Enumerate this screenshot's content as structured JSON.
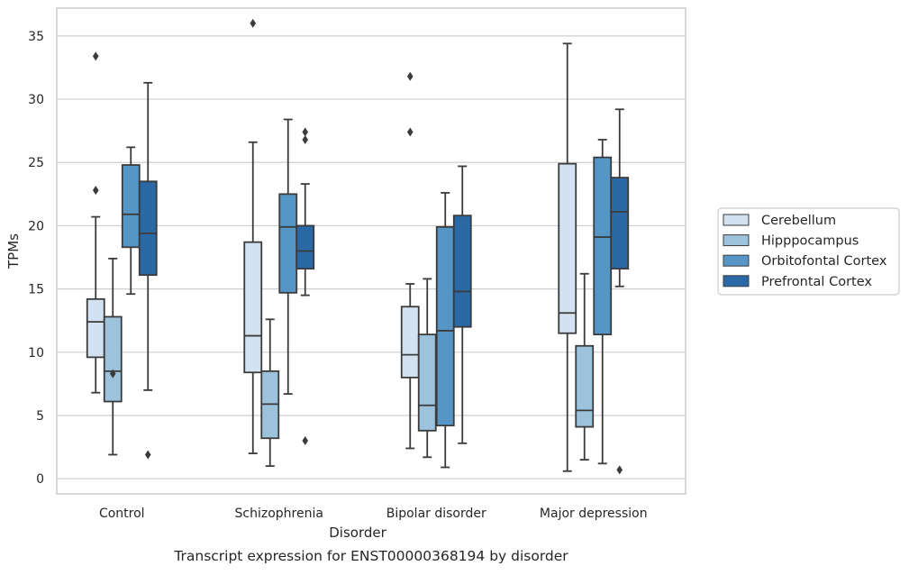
{
  "caption": "Transcript expression for ENST00000368194 by disorder",
  "chart_data": {
    "type": "boxplot",
    "xlabel": "Disorder",
    "ylabel": "TPMs",
    "ylim": [
      -1.2,
      37.2
    ],
    "yticks": [
      0,
      5,
      10,
      15,
      20,
      25,
      30,
      35
    ],
    "grid": "horizontal",
    "legend_placement": "right",
    "categories": [
      "Control",
      "Schizophrenia",
      "Bipolar disorder",
      "Major depression"
    ],
    "series": [
      {
        "name": "Cerebellum",
        "color": "#d3e2f1",
        "boxes": [
          {
            "whisker_low": 6.8,
            "q1": 9.6,
            "median": 12.4,
            "q3": 14.2,
            "whisker_high": 20.7,
            "outliers": [
              22.8,
              33.4
            ]
          },
          {
            "whisker_low": 2.0,
            "q1": 8.4,
            "median": 11.3,
            "q3": 18.7,
            "whisker_high": 26.6,
            "outliers": [
              36.0
            ]
          },
          {
            "whisker_low": 2.4,
            "q1": 8.0,
            "median": 9.8,
            "q3": 13.6,
            "whisker_high": 15.4,
            "outliers": [
              27.4,
              31.8
            ]
          },
          {
            "whisker_low": 0.6,
            "q1": 11.5,
            "median": 13.1,
            "q3": 24.9,
            "whisker_high": 34.4,
            "outliers": []
          }
        ]
      },
      {
        "name": "Hipppocampus",
        "color": "#9cc2dc",
        "boxes": [
          {
            "whisker_low": 1.9,
            "q1": 6.1,
            "median": 8.5,
            "q3": 12.8,
            "whisker_high": 17.4,
            "outliers": [
              8.3
            ]
          },
          {
            "whisker_low": 1.0,
            "q1": 3.2,
            "median": 5.9,
            "q3": 8.5,
            "whisker_high": 12.6,
            "outliers": []
          },
          {
            "whisker_low": 1.7,
            "q1": 3.8,
            "median": 5.8,
            "q3": 11.4,
            "whisker_high": 15.8,
            "outliers": []
          },
          {
            "whisker_low": 1.5,
            "q1": 4.1,
            "median": 5.4,
            "q3": 10.5,
            "whisker_high": 16.2,
            "outliers": []
          }
        ]
      },
      {
        "name": "Orbitofontal Cortex",
        "color": "#5696c6",
        "boxes": [
          {
            "whisker_low": 14.6,
            "q1": 18.3,
            "median": 20.9,
            "q3": 24.8,
            "whisker_high": 26.2,
            "outliers": []
          },
          {
            "whisker_low": 6.7,
            "q1": 14.7,
            "median": 19.9,
            "q3": 22.5,
            "whisker_high": 28.4,
            "outliers": []
          },
          {
            "whisker_low": 0.9,
            "q1": 4.2,
            "median": 11.7,
            "q3": 19.9,
            "whisker_high": 22.6,
            "outliers": []
          },
          {
            "whisker_low": 1.2,
            "q1": 11.4,
            "median": 19.1,
            "q3": 25.4,
            "whisker_high": 26.8,
            "outliers": []
          }
        ]
      },
      {
        "name": "Prefrontal Cortex",
        "color": "#2a68a6",
        "boxes": [
          {
            "whisker_low": 7.0,
            "q1": 16.1,
            "median": 19.4,
            "q3": 23.5,
            "whisker_high": 31.3,
            "outliers": [
              1.9
            ]
          },
          {
            "whisker_low": 14.5,
            "q1": 16.6,
            "median": 18.0,
            "q3": 20.0,
            "whisker_high": 23.3,
            "outliers": [
              3.0,
              26.8,
              27.4
            ]
          },
          {
            "whisker_low": 2.8,
            "q1": 12.0,
            "median": 14.8,
            "q3": 20.8,
            "whisker_high": 24.7,
            "outliers": []
          },
          {
            "whisker_low": 15.2,
            "q1": 16.6,
            "median": 21.1,
            "q3": 23.8,
            "whisker_high": 29.2,
            "outliers": [
              0.7
            ]
          }
        ]
      }
    ]
  }
}
